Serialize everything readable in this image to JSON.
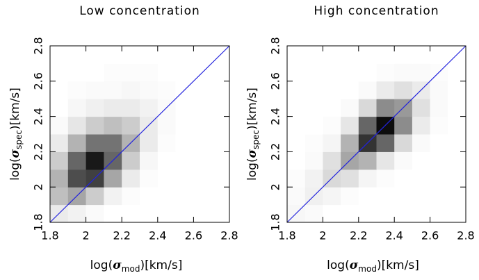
{
  "chart_data": [
    {
      "type": "heatmap",
      "title": "Low concentration",
      "xlabel": {
        "before": "log(",
        "symbol": "σ",
        "sub": "mod",
        "after": ")[km/s]"
      },
      "ylabel": {
        "before": "log(",
        "symbol": "σ",
        "sub": "spec",
        "after": ")[km/s]"
      },
      "xlim": [
        1.8,
        2.8
      ],
      "ylim": [
        1.8,
        2.8
      ],
      "xticks": [
        1.8,
        2,
        2.2,
        2.4,
        2.6,
        2.8
      ],
      "yticks": [
        1.8,
        2,
        2.2,
        2.4,
        2.6,
        2.8
      ],
      "x_bins": [
        1.8,
        1.9,
        2.0,
        2.1,
        2.2,
        2.3,
        2.4,
        2.5,
        2.6,
        2.7,
        2.8
      ],
      "y_bins": [
        1.8,
        1.9,
        2.0,
        2.1,
        2.2,
        2.3,
        2.4,
        2.5,
        2.6,
        2.7,
        2.8
      ],
      "z": [
        [
          8,
          5,
          2,
          0,
          0,
          0,
          0,
          0,
          0,
          0
        ],
        [
          25,
          35,
          20,
          5,
          1,
          0,
          0,
          0,
          0,
          0
        ],
        [
          30,
          70,
          75,
          35,
          8,
          1,
          0,
          0,
          0,
          0
        ],
        [
          20,
          60,
          90,
          60,
          20,
          3,
          0,
          0,
          0,
          0
        ],
        [
          8,
          30,
          55,
          55,
          30,
          8,
          1,
          0,
          0,
          0
        ],
        [
          2,
          10,
          20,
          25,
          20,
          8,
          2,
          0,
          0,
          0
        ],
        [
          0,
          3,
          6,
          8,
          8,
          5,
          2,
          0,
          0,
          0
        ],
        [
          0,
          1,
          2,
          2,
          3,
          2,
          1,
          0,
          0,
          0
        ],
        [
          0,
          0,
          0,
          1,
          1,
          1,
          0,
          0,
          0,
          0
        ],
        [
          0,
          0,
          0,
          0,
          0,
          0,
          0,
          0,
          0,
          0
        ]
      ],
      "zlim": [
        0,
        100
      ],
      "diagonal_color": "#2222dd"
    },
    {
      "type": "heatmap",
      "title": "High concentration",
      "xlabel": {
        "before": "log(",
        "symbol": "σ",
        "sub": "mod",
        "after": ")[km/s]"
      },
      "ylabel": {
        "before": "log(",
        "symbol": "σ",
        "sub": "spec",
        "after": ")[km/s]"
      },
      "xlim": [
        1.8,
        2.8
      ],
      "ylim": [
        1.8,
        2.8
      ],
      "xticks": [
        1.8,
        2,
        2.2,
        2.4,
        2.6,
        2.8
      ],
      "yticks": [
        1.8,
        2,
        2.2,
        2.4,
        2.6,
        2.8
      ],
      "x_bins": [
        1.8,
        1.9,
        2.0,
        2.1,
        2.2,
        2.3,
        2.4,
        2.5,
        2.6,
        2.7,
        2.8
      ],
      "y_bins": [
        1.8,
        1.9,
        2.0,
        2.1,
        2.2,
        2.3,
        2.4,
        2.5,
        2.6,
        2.7,
        2.8
      ],
      "z": [
        [
          3,
          2,
          0,
          0,
          0,
          0,
          0,
          0,
          0,
          0
        ],
        [
          2,
          6,
          4,
          1,
          0,
          0,
          0,
          0,
          0,
          0
        ],
        [
          1,
          5,
          15,
          12,
          4,
          1,
          0,
          0,
          0,
          0
        ],
        [
          0,
          2,
          12,
          35,
          30,
          10,
          2,
          0,
          0,
          0
        ],
        [
          0,
          1,
          4,
          30,
          80,
          60,
          15,
          2,
          0,
          0
        ],
        [
          0,
          0,
          1,
          10,
          60,
          95,
          45,
          8,
          1,
          0
        ],
        [
          0,
          0,
          0,
          2,
          15,
          45,
          40,
          12,
          2,
          0
        ],
        [
          0,
          0,
          0,
          0,
          2,
          8,
          12,
          8,
          2,
          0
        ],
        [
          0,
          0,
          0,
          0,
          0,
          1,
          2,
          2,
          1,
          0
        ],
        [
          0,
          0,
          0,
          0,
          0,
          0,
          0,
          0,
          0,
          0
        ]
      ],
      "zlim": [
        0,
        100
      ],
      "diagonal_color": "#2222dd"
    }
  ]
}
